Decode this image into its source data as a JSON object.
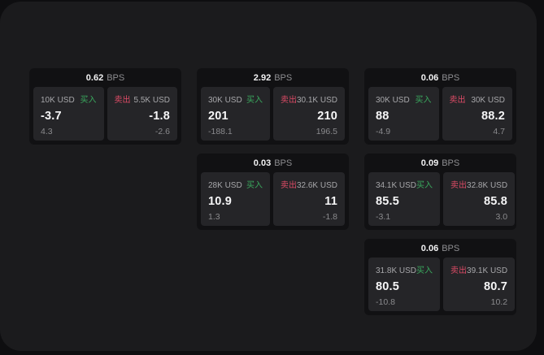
{
  "labels": {
    "bps_unit": "BPS",
    "buy": "买入",
    "sell": "卖出"
  },
  "colors": {
    "buy": "#3aa95e",
    "sell": "#dd4b66",
    "window_bg": "#1b1b1d",
    "card_bg": "#111113",
    "panel_bg": "#252528"
  },
  "cards": [
    {
      "bps": "0.62",
      "buy": {
        "amount": "10K USD",
        "value": "-3.7",
        "sub": "4.3"
      },
      "sell": {
        "amount": "5.5K USD",
        "value": "-1.8",
        "sub": "-2.6"
      }
    },
    {
      "bps": "2.92",
      "buy": {
        "amount": "30K USD",
        "value": "201",
        "sub": "-188.1"
      },
      "sell": {
        "amount": "30.1K USD",
        "value": "210",
        "sub": "196.5"
      }
    },
    {
      "bps": "0.06",
      "buy": {
        "amount": "30K USD",
        "value": "88",
        "sub": "-4.9"
      },
      "sell": {
        "amount": "30K USD",
        "value": "88.2",
        "sub": "4.7"
      }
    },
    {
      "bps": "0.03",
      "buy": {
        "amount": "28K USD",
        "value": "10.9",
        "sub": "1.3"
      },
      "sell": {
        "amount": "32.6K USD",
        "value": "11",
        "sub": "-1.8"
      }
    },
    {
      "bps": "0.09",
      "buy": {
        "amount": "34.1K USD",
        "value": "85.5",
        "sub": "-3.1"
      },
      "sell": {
        "amount": "32.8K USD",
        "value": "85.8",
        "sub": "3.0"
      }
    },
    {
      "bps": "0.06",
      "buy": {
        "amount": "31.8K USD",
        "value": "80.5",
        "sub": "-10.8"
      },
      "sell": {
        "amount": "39.1K USD",
        "value": "80.7",
        "sub": "10.2"
      }
    }
  ]
}
